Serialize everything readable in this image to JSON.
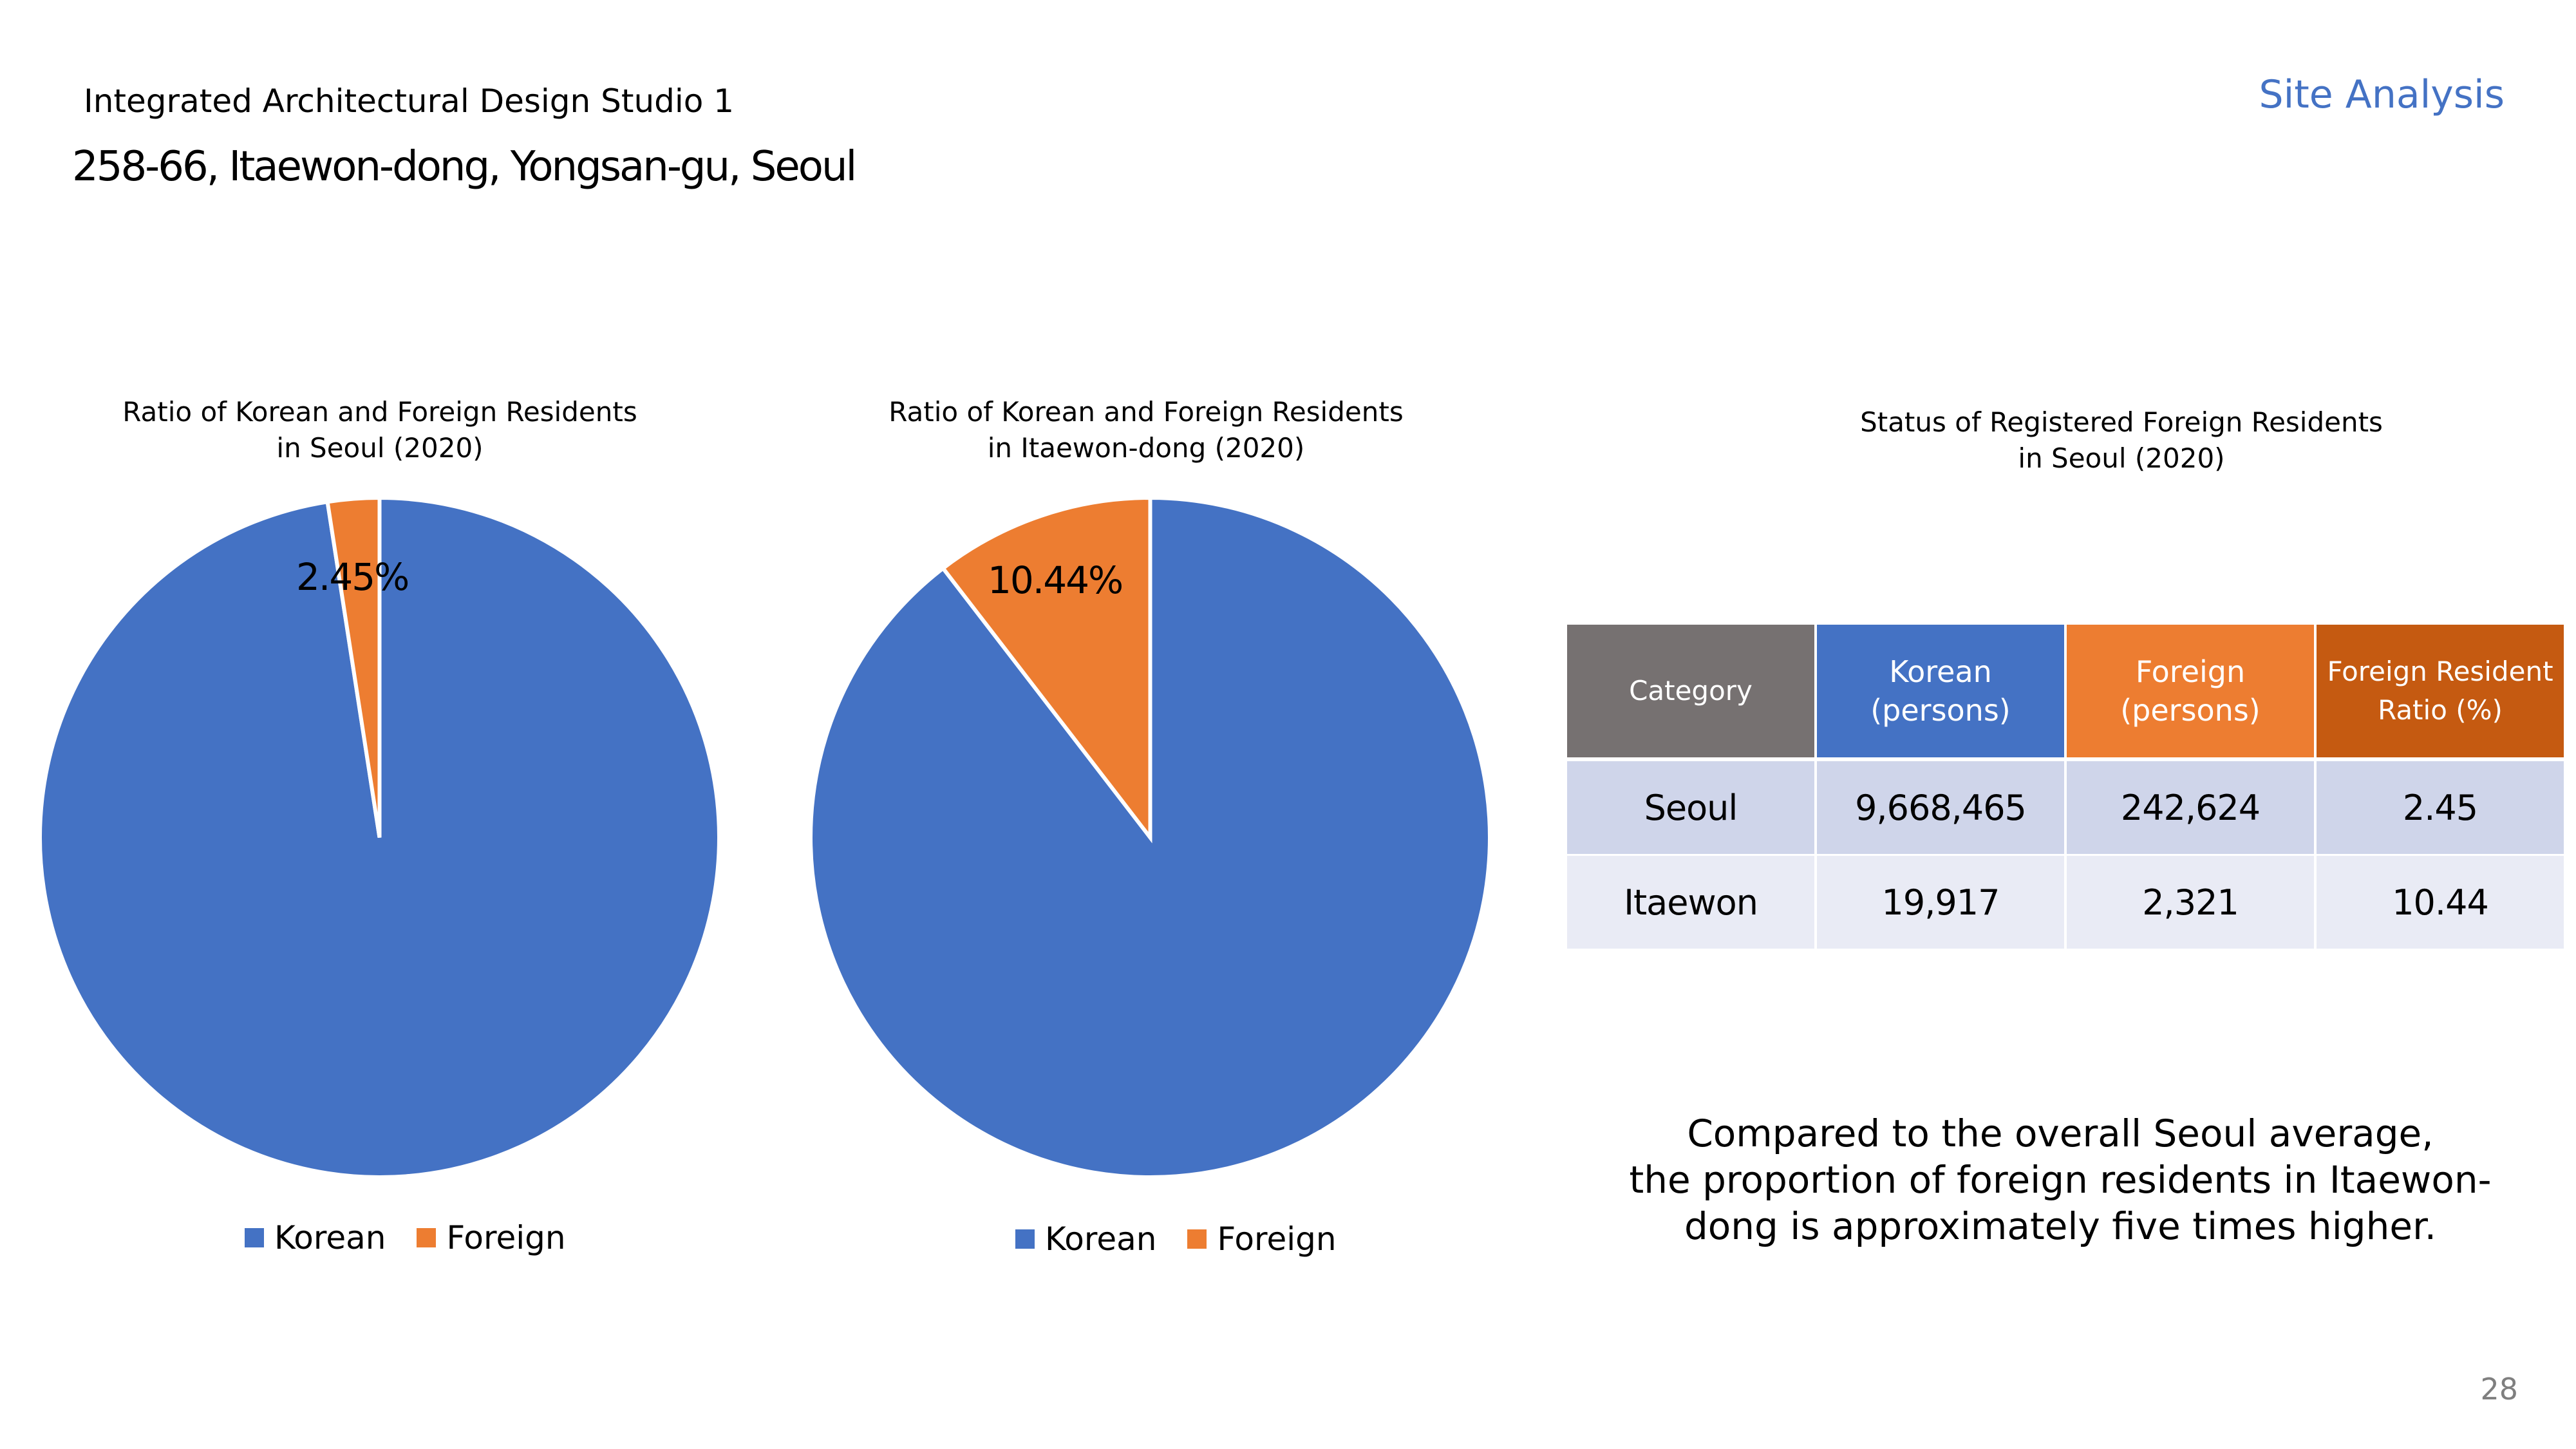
{
  "header": {
    "course": "Integrated Architectural Design Studio 1",
    "address": "258-66, Itaewon-dong, Yongsan-gu, Seoul",
    "section": "Site Analysis"
  },
  "colors": {
    "korean": "#4472c4",
    "foreign": "#ed7d31",
    "category": "#767171",
    "ratio": "#c55a11",
    "accent": "#4472c4"
  },
  "chart_data": [
    {
      "type": "pie",
      "title_line1": "Ratio of Korean and Foreign Residents",
      "title_line2": "in Seoul (2020)",
      "categories": [
        "Korean",
        "Foreign"
      ],
      "values": [
        97.55,
        2.45
      ],
      "data_label": "2.45%",
      "legend": [
        "Korean",
        "Foreign"
      ],
      "legend_position": "bottom"
    },
    {
      "type": "pie",
      "title_line1": "Ratio of Korean and Foreign Residents",
      "title_line2": "in Itaewon-dong (2020)",
      "categories": [
        "Korean",
        "Foreign"
      ],
      "values": [
        89.56,
        10.44
      ],
      "data_label": "10.44%",
      "legend": [
        "Korean",
        "Foreign"
      ],
      "legend_position": "bottom"
    },
    {
      "type": "table",
      "title_line1": "Status of Registered Foreign Residents",
      "title_line2": "in Seoul (2020)",
      "headers": [
        "Category",
        "Korean\n(persons)",
        "Foreign\n(persons)",
        "Foreign Resident\nRatio (%)"
      ],
      "rows": [
        [
          "Seoul",
          "9,668,465",
          "242,624",
          "2.45"
        ],
        [
          "Itaewon",
          "19,917",
          "2,321",
          "10.44"
        ]
      ]
    }
  ],
  "summary": {
    "line1": "Compared to the overall Seoul average,",
    "line2": "the proportion of foreign residents in Itaewon-",
    "line3": "dong is approximately five times higher."
  },
  "page_number": "28"
}
